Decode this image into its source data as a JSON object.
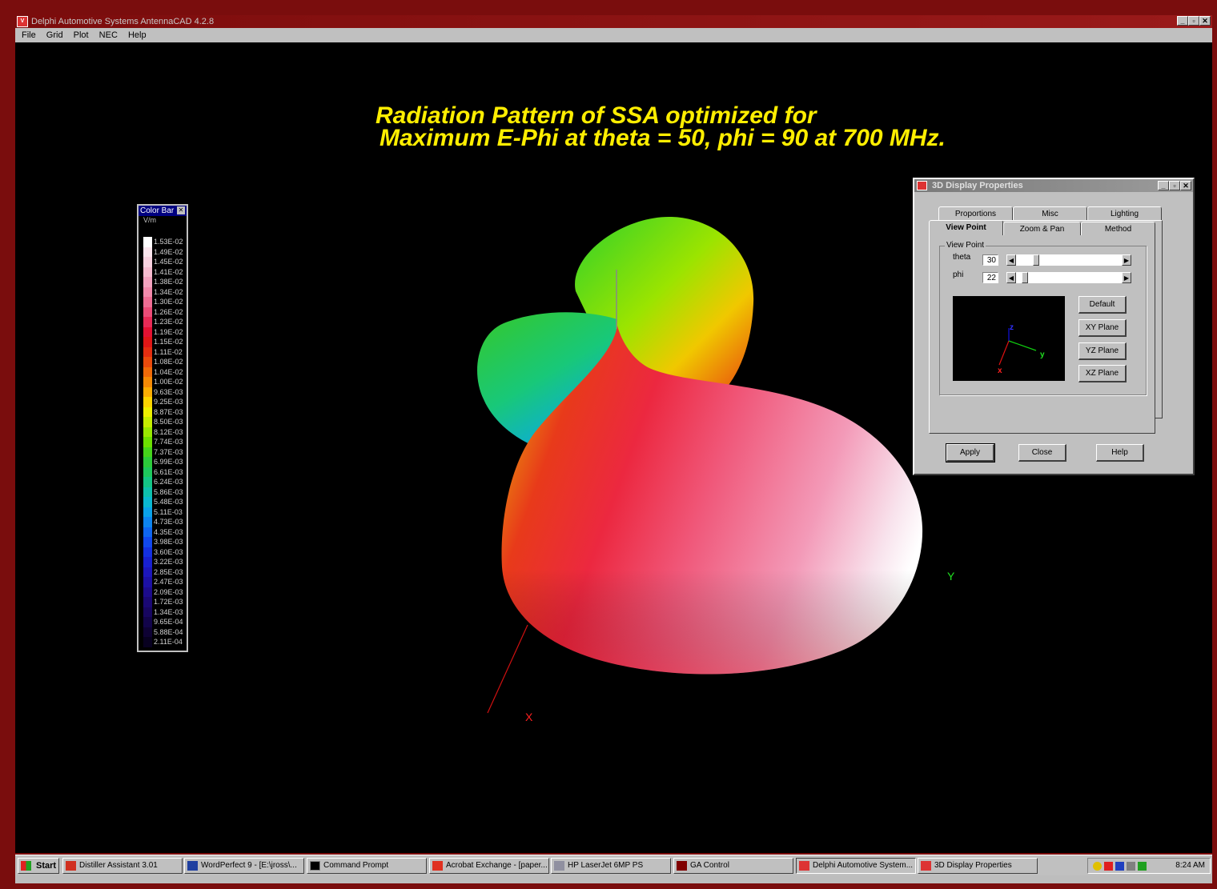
{
  "window": {
    "title": "Delphi Automotive Systems AntennaCAD 4.2.8",
    "controls": [
      "_",
      "▫",
      "✕"
    ]
  },
  "menu": [
    "File",
    "Grid",
    "Plot",
    "NEC",
    "Help"
  ],
  "plot_title": {
    "line1": "Radiation Pattern of SSA optimized for",
    "line2": "Maximum E-Phi at theta = 50, phi = 90 at 700 MHz."
  },
  "axes": {
    "x": "X",
    "y": "Y"
  },
  "colorbar": {
    "title": "Color Bar",
    "units": "V/m",
    "labels": [
      "1.53E-02",
      "1.49E-02",
      "1.45E-02",
      "1.41E-02",
      "1.38E-02",
      "1.34E-02",
      "1.30E-02",
      "1.26E-02",
      "1.23E-02",
      "1.19E-02",
      "1.15E-02",
      "1.11E-02",
      "1.08E-02",
      "1.04E-02",
      "1.00E-02",
      "9.63E-03",
      "9.25E-03",
      "8.87E-03",
      "8.50E-03",
      "8.12E-03",
      "7.74E-03",
      "7.37E-03",
      "6.99E-03",
      "6.61E-03",
      "6.24E-03",
      "5.86E-03",
      "5.48E-03",
      "5.11E-03",
      "4.73E-03",
      "4.35E-03",
      "3.98E-03",
      "3.60E-03",
      "3.22E-03",
      "2.85E-03",
      "2.47E-03",
      "2.09E-03",
      "1.72E-03",
      "1.34E-03",
      "9.65E-04",
      "5.88E-04",
      "2.11E-04"
    ],
    "colors": [
      "#ffffff",
      "#fbe6ee",
      "#f8d2e0",
      "#f6bcd0",
      "#f3a3bf",
      "#f28aac",
      "#ef6d94",
      "#ec4c78",
      "#e82a56",
      "#e41132",
      "#e01616",
      "#e42d10",
      "#ea4a0c",
      "#f06a08",
      "#f58a05",
      "#fbae03",
      "#fcd400",
      "#eef000",
      "#c6ee00",
      "#99e800",
      "#6ddf00",
      "#46d41a",
      "#2ccc3a",
      "#1ec85c",
      "#14c585",
      "#0ec0ac",
      "#0ab8d0",
      "#0aa2e8",
      "#0d84ee",
      "#0f66f0",
      "#1148ee",
      "#1430e2",
      "#1820d0",
      "#1c16bb",
      "#1c10a4",
      "#1c0b8c",
      "#1a0874",
      "#170660",
      "#12044a",
      "#0e0234",
      "#080120"
    ]
  },
  "dialog": {
    "title": "3D Display Properties",
    "tabs_back": [
      "Proportions",
      "Misc",
      "Lighting"
    ],
    "tabs_front": [
      "View Point",
      "Zoom & Pan",
      "Method"
    ],
    "active_tab": "View Point",
    "group_label": "View Point",
    "theta_label": "theta",
    "theta_value": "30",
    "phi_label": "phi",
    "phi_value": "22",
    "theta_slider_pct": 17,
    "phi_slider_pct": 6,
    "preview_axes": {
      "x": "x",
      "y": "y",
      "z": "z"
    },
    "side_buttons": [
      "Default",
      "XY Plane",
      "YZ Plane",
      "XZ Plane"
    ],
    "bottom_buttons": [
      "Apply",
      "Close",
      "Help"
    ]
  },
  "taskbar": {
    "start_label": "Start",
    "items": [
      "Distiller Assistant 3.01",
      "WordPerfect 9 - [E:\\jross\\...",
      "Command Prompt",
      "Acrobat Exchange - [paper...",
      "HP LaserJet 6MP PS",
      "GA Control",
      "Delphi Automotive System...",
      "3D Display Properties"
    ],
    "clock": "8:24 AM"
  }
}
